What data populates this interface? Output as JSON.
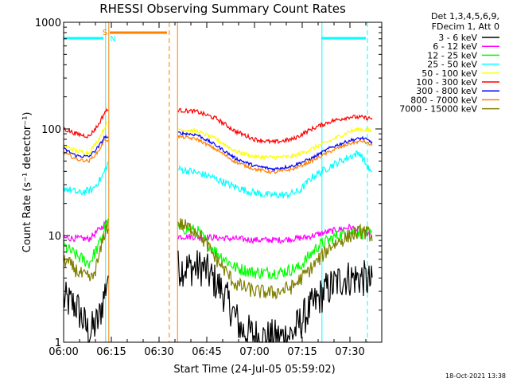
{
  "chart_data": {
    "type": "line",
    "title": "RHESSI Observing Summary Count Rates",
    "xlabel": "Start Time (24-Jul-05 05:59:02)",
    "ylabel": "Count Rate (s⁻¹ detector⁻¹)",
    "x_unit": "minutes after 06:00 UT",
    "xlim": [
      0,
      100
    ],
    "ylim": [
      1,
      1000
    ],
    "yscale": "log",
    "xticks": [
      "06:00",
      "06:15",
      "06:30",
      "06:45",
      "07:00",
      "07:15",
      "07:30"
    ],
    "yticks": [
      "1",
      "10",
      "100",
      "1000"
    ],
    "legend_header": [
      "Det 1,3,4,5,6,9,",
      "FDecim 1, Att 0"
    ],
    "legend_position": "right",
    "footer_date": "18-Oct-2021 13:38",
    "grid": false,
    "segments": [
      [
        0,
        14
      ],
      [
        36,
        97
      ]
    ],
    "series": [
      {
        "name": "3 - 6 keV",
        "color": "#000000",
        "values": [
          [
            0,
            2.5
          ],
          [
            4,
            2.2
          ],
          [
            8,
            1.2
          ],
          [
            11,
            1.6
          ],
          [
            13,
            3.0
          ],
          [
            14,
            4.5
          ],
          [
            36,
            5.0
          ],
          [
            44,
            5.0
          ],
          [
            50,
            3.0
          ],
          [
            56,
            1.3
          ],
          [
            62,
            1.1
          ],
          [
            68,
            1.1
          ],
          [
            72,
            1.2
          ],
          [
            76,
            1.8
          ],
          [
            82,
            3.0
          ],
          [
            88,
            4.0
          ],
          [
            94,
            4.0
          ],
          [
            97,
            3.5
          ]
        ]
      },
      {
        "name": "6 - 12 keV",
        "color": "#ff00ff",
        "values": [
          [
            0,
            9.5
          ],
          [
            4,
            9.4
          ],
          [
            8,
            9.3
          ],
          [
            12,
            12
          ],
          [
            14,
            14
          ],
          [
            36,
            9.8
          ],
          [
            44,
            9.7
          ],
          [
            52,
            9.4
          ],
          [
            60,
            9.1
          ],
          [
            68,
            9.1
          ],
          [
            76,
            9.6
          ],
          [
            84,
            11
          ],
          [
            90,
            12
          ],
          [
            97,
            10
          ]
        ]
      },
      {
        "name": "12 - 25 keV",
        "color": "#00ff00",
        "values": [
          [
            0,
            8.0
          ],
          [
            4,
            6.5
          ],
          [
            8,
            5.5
          ],
          [
            11,
            8
          ],
          [
            13,
            12
          ],
          [
            14,
            13
          ],
          [
            36,
            12
          ],
          [
            42,
            11
          ],
          [
            48,
            7.0
          ],
          [
            54,
            5.0
          ],
          [
            60,
            4.5
          ],
          [
            68,
            4.5
          ],
          [
            74,
            5.0
          ],
          [
            80,
            8.0
          ],
          [
            86,
            10
          ],
          [
            92,
            11
          ],
          [
            97,
            10
          ]
        ]
      },
      {
        "name": "25 - 50 keV",
        "color": "#00ffff",
        "values": [
          [
            0,
            28
          ],
          [
            5,
            25
          ],
          [
            9,
            27
          ],
          [
            12,
            35
          ],
          [
            14,
            48
          ],
          [
            36,
            42
          ],
          [
            40,
            40
          ],
          [
            46,
            36
          ],
          [
            52,
            30
          ],
          [
            58,
            26
          ],
          [
            64,
            24
          ],
          [
            70,
            24
          ],
          [
            74,
            26
          ],
          [
            78,
            35
          ],
          [
            84,
            45
          ],
          [
            90,
            55
          ],
          [
            93,
            60
          ],
          [
            97,
            37
          ]
        ]
      },
      {
        "name": "50 - 100 keV",
        "color": "#ffff00",
        "values": [
          [
            0,
            70
          ],
          [
            4,
            62
          ],
          [
            8,
            60
          ],
          [
            11,
            80
          ],
          [
            13,
            105
          ],
          [
            14,
            115
          ],
          [
            36,
            100
          ],
          [
            42,
            95
          ],
          [
            48,
            80
          ],
          [
            54,
            62
          ],
          [
            60,
            55
          ],
          [
            66,
            54
          ],
          [
            72,
            55
          ],
          [
            78,
            65
          ],
          [
            84,
            78
          ],
          [
            90,
            95
          ],
          [
            93,
            100
          ],
          [
            97,
            95
          ]
        ]
      },
      {
        "name": "100 - 300 keV",
        "color": "#ff0000",
        "values": [
          [
            0,
            100
          ],
          [
            4,
            90
          ],
          [
            8,
            85
          ],
          [
            11,
            110
          ],
          [
            13,
            145
          ],
          [
            14,
            150
          ],
          [
            36,
            150
          ],
          [
            42,
            145
          ],
          [
            48,
            125
          ],
          [
            54,
            95
          ],
          [
            60,
            80
          ],
          [
            66,
            75
          ],
          [
            72,
            80
          ],
          [
            78,
            100
          ],
          [
            84,
            118
          ],
          [
            90,
            130
          ],
          [
            94,
            128
          ],
          [
            97,
            125
          ]
        ]
      },
      {
        "name": "300 - 800 keV",
        "color": "#0000ff",
        "values": [
          [
            0,
            65
          ],
          [
            4,
            56
          ],
          [
            8,
            55
          ],
          [
            11,
            68
          ],
          [
            13,
            85
          ],
          [
            14,
            82
          ],
          [
            36,
            92
          ],
          [
            42,
            88
          ],
          [
            48,
            70
          ],
          [
            54,
            53
          ],
          [
            60,
            45
          ],
          [
            66,
            42
          ],
          [
            72,
            45
          ],
          [
            78,
            53
          ],
          [
            84,
            67
          ],
          [
            90,
            78
          ],
          [
            94,
            82
          ],
          [
            97,
            75
          ]
        ]
      },
      {
        "name": "800 - 7000 keV",
        "color": "#ff8000",
        "values": [
          [
            0,
            60
          ],
          [
            4,
            52
          ],
          [
            8,
            50
          ],
          [
            11,
            62
          ],
          [
            13,
            80
          ],
          [
            14,
            78
          ],
          [
            36,
            85
          ],
          [
            42,
            80
          ],
          [
            48,
            64
          ],
          [
            54,
            49
          ],
          [
            60,
            42
          ],
          [
            66,
            39
          ],
          [
            72,
            42
          ],
          [
            78,
            50
          ],
          [
            84,
            62
          ],
          [
            90,
            73
          ],
          [
            94,
            77
          ],
          [
            97,
            70
          ]
        ]
      },
      {
        "name": "7000 - 15000 keV",
        "color": "#808000",
        "values": [
          [
            0,
            6.0
          ],
          [
            3,
            5.0
          ],
          [
            6,
            4.2
          ],
          [
            9,
            3.9
          ],
          [
            11,
            6
          ],
          [
            13,
            11
          ],
          [
            14,
            12
          ],
          [
            36,
            13
          ],
          [
            42,
            11
          ],
          [
            48,
            6
          ],
          [
            54,
            3.5
          ],
          [
            60,
            3.0
          ],
          [
            66,
            2.9
          ],
          [
            72,
            3.3
          ],
          [
            78,
            5.0
          ],
          [
            84,
            8
          ],
          [
            90,
            10
          ],
          [
            94,
            11
          ],
          [
            97,
            10
          ]
        ]
      }
    ],
    "flag_bars": [
      {
        "label": "",
        "color": "#00ffff",
        "ranges": [
          [
            0,
            12.5
          ],
          [
            81,
            95
          ]
        ]
      },
      {
        "label": "S",
        "color": "#ff8000",
        "ranges": [
          [
            14.5,
            32.5
          ]
        ]
      },
      {
        "label": "N",
        "color": "#00ffff",
        "ranges": []
      }
    ],
    "vertical_markers": [
      {
        "x": 0,
        "color": "#00ffff",
        "style": "solid"
      },
      {
        "x": 13.2,
        "color": "#00ffff",
        "style": "solid"
      },
      {
        "x": 14.2,
        "color": "#ff8000",
        "style": "solid"
      },
      {
        "x": 33.2,
        "color": "#ff8000",
        "style": "dashed"
      },
      {
        "x": 35.8,
        "color": "#ff8000",
        "style": "solid"
      },
      {
        "x": 81.2,
        "color": "#00ffff",
        "style": "solid"
      },
      {
        "x": 95.5,
        "color": "#00ffff",
        "style": "dashed"
      }
    ]
  }
}
